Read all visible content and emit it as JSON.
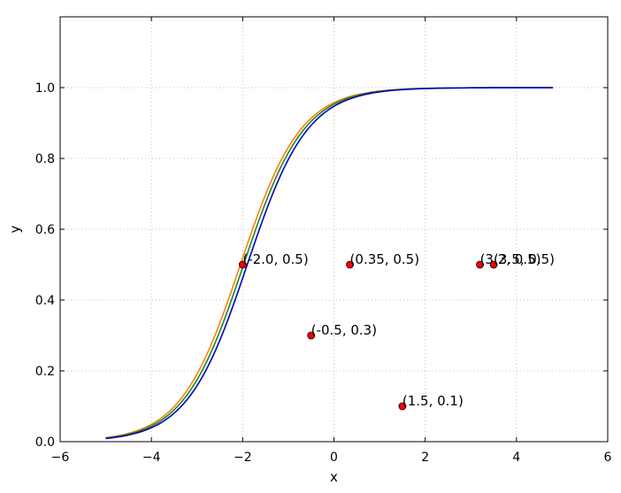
{
  "chart_data": {
    "type": "scatter",
    "title": "",
    "xlabel": "x",
    "ylabel": "y",
    "xlim": [
      -6,
      6
    ],
    "ylim": [
      0,
      1.2
    ],
    "xticks": [
      -6,
      -4,
      -2,
      0,
      2,
      4,
      6
    ],
    "xtick_labels": [
      "−6",
      "−4",
      "−2",
      "0",
      "2",
      "4",
      "6"
    ],
    "yticks": [
      0,
      0.2,
      0.4,
      0.6,
      0.8,
      1.0
    ],
    "ytick_labels": [
      "0.0",
      "0.2",
      "0.4",
      "0.6",
      "0.8",
      "1.0"
    ],
    "grid": true,
    "curves": [
      {
        "color": "#ff7f0e",
        "shift": -2.05,
        "slope": 1.52,
        "x_range": [
          -5,
          4.8
        ]
      },
      {
        "color": "#1a8a1a",
        "shift": -1.98,
        "slope": 1.52,
        "x_range": [
          -5,
          4.8
        ]
      },
      {
        "color": "#0000bf",
        "shift": -1.9,
        "slope": 1.52,
        "x_range": [
          -5,
          4.8
        ]
      }
    ],
    "points": [
      {
        "x": -2.0,
        "y": 0.5,
        "label": "(-2.0, 0.5)"
      },
      {
        "x": 0.35,
        "y": 0.5,
        "label": "(0.35, 0.5)"
      },
      {
        "x": 3.2,
        "y": 0.5,
        "label": "(3.2, 0.5)"
      },
      {
        "x": 3.5,
        "y": 0.5,
        "label": "(3.5, 0.5)"
      },
      {
        "x": -0.5,
        "y": 0.3,
        "label": "(-0.5, 0.3)"
      },
      {
        "x": 1.5,
        "y": 0.1,
        "label": "(1.5, 0.1)"
      }
    ],
    "point_color": "#ff0000"
  }
}
